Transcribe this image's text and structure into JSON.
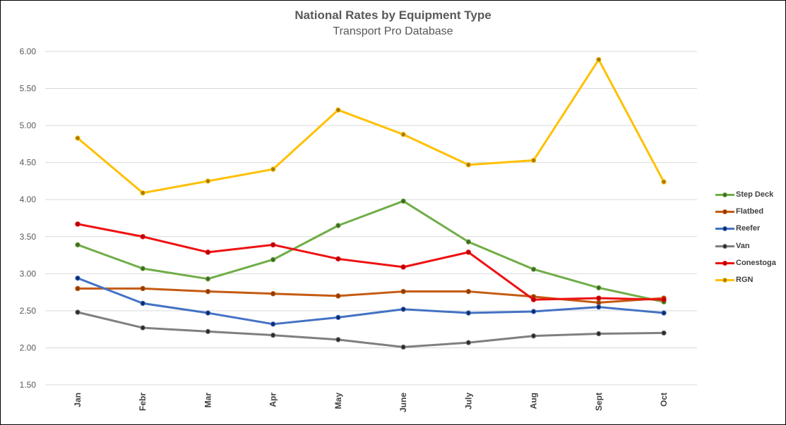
{
  "chart_data": {
    "type": "line",
    "title": "National Rates by Equipment Type",
    "subtitle": "Transport Pro Database",
    "xlabel": "",
    "ylabel": "",
    "ylim": [
      1.5,
      6.0
    ],
    "y_ticks": [
      "1.50",
      "2.00",
      "2.50",
      "3.00",
      "3.50",
      "4.00",
      "4.50",
      "5.00",
      "5.50",
      "6.00"
    ],
    "grid": true,
    "legend_position": "right",
    "categories": [
      "Jan",
      "Febr",
      "Mar",
      "Apr",
      "May",
      "June",
      "July",
      "Aug",
      "Sept",
      "Oct"
    ],
    "series": [
      {
        "name": "Step Deck",
        "color": "#70AD47",
        "marker_color": "#3E6A25",
        "values": [
          3.39,
          3.07,
          2.93,
          3.19,
          3.65,
          3.98,
          3.43,
          3.06,
          2.81,
          2.62
        ]
      },
      {
        "name": "Flatbed",
        "color": "#C55A11",
        "marker_color": "#8B3C09",
        "values": [
          2.8,
          2.8,
          2.76,
          2.73,
          2.7,
          2.76,
          2.76,
          2.69,
          2.61,
          2.67
        ]
      },
      {
        "name": "Reefer",
        "color": "#4472C4",
        "marker_color": "#0E2A6B",
        "values": [
          2.94,
          2.6,
          2.47,
          2.32,
          2.41,
          2.52,
          2.47,
          2.49,
          2.55,
          2.47
        ]
      },
      {
        "name": "Van",
        "color": "#7F7F7F",
        "marker_color": "#2B2B2B",
        "values": [
          2.48,
          2.27,
          2.22,
          2.17,
          2.11,
          2.01,
          2.07,
          2.16,
          2.19,
          2.2
        ]
      },
      {
        "name": "Conestoga",
        "color": "#EE1111",
        "marker_color": "#B30000",
        "values": [
          3.67,
          3.5,
          3.29,
          3.39,
          3.2,
          3.09,
          3.29,
          2.65,
          2.67,
          2.65
        ]
      },
      {
        "name": "RGN",
        "color": "#FFC000",
        "marker_color": "#A77A00",
        "values": [
          4.83,
          4.09,
          4.25,
          4.41,
          5.21,
          4.88,
          4.47,
          4.53,
          5.89,
          4.24
        ]
      }
    ]
  }
}
